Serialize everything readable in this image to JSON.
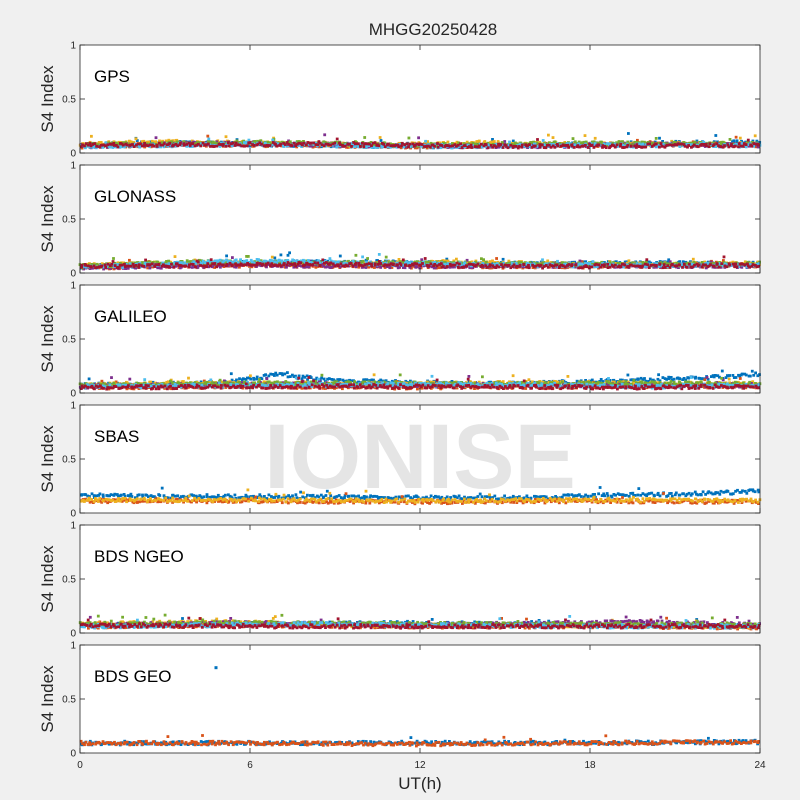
{
  "figure": {
    "title": "MHGG20250428",
    "xlabel": "UT(h)",
    "watermark": "IONISE",
    "background": "#f0f0f0",
    "axes_background": "#ffffff",
    "colors": [
      "#0072bd",
      "#d95319",
      "#edb120",
      "#7e2f8e",
      "#77ac30",
      "#4dbeee",
      "#a2142f"
    ]
  },
  "chart_data": [
    {
      "type": "scatter",
      "panel_label": "GPS",
      "ylabel": "S4 Index",
      "xlim": [
        0,
        24
      ],
      "ylim": [
        0,
        1
      ],
      "xticks": [
        0,
        6,
        12,
        18,
        24
      ],
      "yticks": [
        0,
        0.5,
        1
      ],
      "show_xtick_labels": false,
      "series": [
        {
          "color": "#0072bd",
          "baseline": [
            [
              0,
              0.07
            ],
            [
              3,
              0.09
            ],
            [
              6,
              0.08
            ],
            [
              9,
              0.07
            ],
            [
              12,
              0.06
            ],
            [
              15,
              0.07
            ],
            [
              18,
              0.08
            ],
            [
              21,
              0.09
            ],
            [
              24,
              0.1
            ]
          ]
        },
        {
          "color": "#d95319",
          "baseline": [
            [
              0,
              0.06
            ],
            [
              4,
              0.08
            ],
            [
              8,
              0.07
            ],
            [
              12,
              0.06
            ],
            [
              16,
              0.07
            ],
            [
              20,
              0.08
            ],
            [
              24,
              0.07
            ]
          ]
        },
        {
          "color": "#edb120",
          "baseline": [
            [
              0,
              0.08
            ],
            [
              3,
              0.1
            ],
            [
              6,
              0.09
            ],
            [
              10,
              0.07
            ],
            [
              14,
              0.09
            ],
            [
              18,
              0.08
            ],
            [
              24,
              0.08
            ]
          ]
        },
        {
          "color": "#7e2f8e",
          "baseline": [
            [
              0,
              0.06
            ],
            [
              5,
              0.09
            ],
            [
              10,
              0.07
            ],
            [
              15,
              0.06
            ],
            [
              20,
              0.08
            ],
            [
              24,
              0.07
            ]
          ]
        },
        {
          "color": "#77ac30",
          "baseline": [
            [
              0,
              0.07
            ],
            [
              6,
              0.1
            ],
            [
              12,
              0.07
            ],
            [
              18,
              0.09
            ],
            [
              24,
              0.08
            ]
          ]
        },
        {
          "color": "#4dbeee",
          "baseline": [
            [
              0,
              0.06
            ],
            [
              6,
              0.08
            ],
            [
              12,
              0.06
            ],
            [
              18,
              0.07
            ],
            [
              24,
              0.07
            ]
          ]
        },
        {
          "color": "#a2142f",
          "baseline": [
            [
              0,
              0.07
            ],
            [
              8,
              0.08
            ],
            [
              16,
              0.06
            ],
            [
              24,
              0.07
            ]
          ]
        }
      ],
      "outliers": []
    },
    {
      "type": "scatter",
      "panel_label": "GLONASS",
      "ylabel": "S4 Index",
      "xlim": [
        0,
        24
      ],
      "ylim": [
        0,
        1
      ],
      "xticks": [
        0,
        6,
        12,
        18,
        24
      ],
      "yticks": [
        0,
        0.5,
        1
      ],
      "show_xtick_labels": false,
      "series": [
        {
          "color": "#0072bd",
          "baseline": [
            [
              0,
              0.06
            ],
            [
              6,
              0.09
            ],
            [
              10,
              0.1
            ],
            [
              14,
              0.08
            ],
            [
              20,
              0.09
            ],
            [
              24,
              0.08
            ]
          ]
        },
        {
          "color": "#d95319",
          "baseline": [
            [
              0,
              0.05
            ],
            [
              6,
              0.07
            ],
            [
              12,
              0.06
            ],
            [
              18,
              0.06
            ],
            [
              24,
              0.07
            ]
          ]
        },
        {
          "color": "#edb120",
          "baseline": [
            [
              0,
              0.07
            ],
            [
              4,
              0.09
            ],
            [
              8,
              0.08
            ],
            [
              14,
              0.1
            ],
            [
              18,
              0.07
            ],
            [
              24,
              0.09
            ]
          ]
        },
        {
          "color": "#7e2f8e",
          "baseline": [
            [
              0,
              0.05
            ],
            [
              6,
              0.07
            ],
            [
              12,
              0.06
            ],
            [
              18,
              0.07
            ],
            [
              24,
              0.06
            ]
          ]
        },
        {
          "color": "#77ac30",
          "baseline": [
            [
              0,
              0.06
            ],
            [
              4,
              0.1
            ],
            [
              10,
              0.09
            ],
            [
              16,
              0.08
            ],
            [
              24,
              0.08
            ]
          ]
        },
        {
          "color": "#4dbeee",
          "baseline": [
            [
              0,
              0.05
            ],
            [
              6,
              0.11
            ],
            [
              10,
              0.09
            ],
            [
              16,
              0.07
            ],
            [
              24,
              0.07
            ]
          ]
        },
        {
          "color": "#a2142f",
          "baseline": [
            [
              0,
              0.06
            ],
            [
              8,
              0.08
            ],
            [
              16,
              0.06
            ],
            [
              24,
              0.07
            ]
          ]
        }
      ],
      "outliers": []
    },
    {
      "type": "scatter",
      "panel_label": "GALILEO",
      "ylabel": "S4 Index",
      "xlim": [
        0,
        24
      ],
      "ylim": [
        0,
        1
      ],
      "xticks": [
        0,
        6,
        12,
        18,
        24
      ],
      "yticks": [
        0,
        0.5,
        1
      ],
      "show_xtick_labels": false,
      "series": [
        {
          "color": "#0072bd",
          "baseline": [
            [
              0,
              0.07
            ],
            [
              5,
              0.09
            ],
            [
              7,
              0.17
            ],
            [
              9,
              0.11
            ],
            [
              15,
              0.08
            ],
            [
              20,
              0.12
            ],
            [
              23,
              0.15
            ],
            [
              24,
              0.17
            ]
          ]
        },
        {
          "color": "#d95319",
          "baseline": [
            [
              0,
              0.05
            ],
            [
              6,
              0.06
            ],
            [
              12,
              0.05
            ],
            [
              18,
              0.06
            ],
            [
              24,
              0.06
            ]
          ]
        },
        {
          "color": "#edb120",
          "baseline": [
            [
              0,
              0.07
            ],
            [
              4,
              0.09
            ],
            [
              10,
              0.08
            ],
            [
              16,
              0.09
            ],
            [
              24,
              0.08
            ]
          ]
        },
        {
          "color": "#7e2f8e",
          "baseline": [
            [
              0,
              0.06
            ],
            [
              6,
              0.08
            ],
            [
              12,
              0.07
            ],
            [
              18,
              0.07
            ],
            [
              24,
              0.07
            ]
          ]
        },
        {
          "color": "#77ac30",
          "baseline": [
            [
              0,
              0.07
            ],
            [
              8,
              0.09
            ],
            [
              14,
              0.08
            ],
            [
              20,
              0.09
            ],
            [
              24,
              0.08
            ]
          ]
        },
        {
          "color": "#4dbeee",
          "baseline": [
            [
              0,
              0.06
            ],
            [
              8,
              0.07
            ],
            [
              14,
              0.08
            ],
            [
              20,
              0.06
            ],
            [
              24,
              0.07
            ]
          ]
        },
        {
          "color": "#a2142f",
          "baseline": [
            [
              0,
              0.05
            ],
            [
              10,
              0.06
            ],
            [
              20,
              0.05
            ],
            [
              24,
              0.06
            ]
          ]
        }
      ],
      "outliers": []
    },
    {
      "type": "scatter",
      "panel_label": "SBAS",
      "ylabel": "S4 Index",
      "xlim": [
        0,
        24
      ],
      "ylim": [
        0,
        1
      ],
      "xticks": [
        0,
        6,
        12,
        18,
        24
      ],
      "yticks": [
        0,
        0.5,
        1
      ],
      "show_xtick_labels": false,
      "series": [
        {
          "color": "#0072bd",
          "baseline": [
            [
              0,
              0.16
            ],
            [
              4,
              0.15
            ],
            [
              8,
              0.15
            ],
            [
              12,
              0.14
            ],
            [
              16,
              0.14
            ],
            [
              18,
              0.16
            ],
            [
              21,
              0.17
            ],
            [
              24,
              0.2
            ]
          ]
        },
        {
          "color": "#d95319",
          "baseline": [
            [
              0,
              0.11
            ],
            [
              6,
              0.11
            ],
            [
              12,
              0.1
            ],
            [
              18,
              0.11
            ],
            [
              24,
              0.1
            ]
          ]
        },
        {
          "color": "#edb120",
          "baseline": [
            [
              0,
              0.12
            ],
            [
              6,
              0.12
            ],
            [
              12,
              0.11
            ],
            [
              18,
              0.12
            ],
            [
              24,
              0.11
            ]
          ]
        }
      ],
      "outliers": []
    },
    {
      "type": "scatter",
      "panel_label": "BDS NGEO",
      "ylabel": "S4 Index",
      "xlim": [
        0,
        24
      ],
      "ylim": [
        0,
        1
      ],
      "xticks": [
        0,
        6,
        12,
        18,
        24
      ],
      "yticks": [
        0,
        0.5,
        1
      ],
      "show_xtick_labels": false,
      "series": [
        {
          "color": "#0072bd",
          "baseline": [
            [
              0,
              0.07
            ],
            [
              6,
              0.08
            ],
            [
              12,
              0.09
            ],
            [
              18,
              0.07
            ],
            [
              24,
              0.06
            ]
          ]
        },
        {
          "color": "#d95319",
          "baseline": [
            [
              0,
              0.06
            ],
            [
              6,
              0.07
            ],
            [
              12,
              0.06
            ],
            [
              18,
              0.06
            ],
            [
              24,
              0.05
            ]
          ]
        },
        {
          "color": "#edb120",
          "baseline": [
            [
              0,
              0.08
            ],
            [
              5,
              0.1
            ],
            [
              10,
              0.07
            ],
            [
              16,
              0.07
            ],
            [
              24,
              0.06
            ]
          ]
        },
        {
          "color": "#7e2f8e",
          "baseline": [
            [
              0,
              0.07
            ],
            [
              6,
              0.09
            ],
            [
              12,
              0.07
            ],
            [
              20,
              0.1
            ],
            [
              24,
              0.07
            ]
          ]
        },
        {
          "color": "#77ac30",
          "baseline": [
            [
              0,
              0.08
            ],
            [
              6,
              0.09
            ],
            [
              12,
              0.08
            ],
            [
              18,
              0.08
            ],
            [
              24,
              0.07
            ]
          ]
        },
        {
          "color": "#4dbeee",
          "baseline": [
            [
              0,
              0.06
            ],
            [
              8,
              0.08
            ],
            [
              12,
              0.07
            ],
            [
              18,
              0.06
            ],
            [
              24,
              0.06
            ]
          ]
        },
        {
          "color": "#a2142f",
          "baseline": [
            [
              0,
              0.07
            ],
            [
              8,
              0.06
            ],
            [
              16,
              0.06
            ],
            [
              24,
              0.06
            ]
          ]
        }
      ],
      "outliers": []
    },
    {
      "type": "scatter",
      "panel_label": "BDS GEO",
      "ylabel": "S4 Index",
      "xlim": [
        0,
        24
      ],
      "ylim": [
        0,
        1
      ],
      "xticks": [
        0,
        6,
        12,
        18,
        24
      ],
      "yticks": [
        0,
        0.5,
        1
      ],
      "show_xtick_labels": true,
      "series": [
        {
          "color": "#0072bd",
          "baseline": [
            [
              0,
              0.09
            ],
            [
              6,
              0.09
            ],
            [
              12,
              0.09
            ],
            [
              18,
              0.09
            ],
            [
              24,
              0.1
            ]
          ]
        },
        {
          "color": "#d95319",
          "baseline": [
            [
              0,
              0.09
            ],
            [
              6,
              0.09
            ],
            [
              12,
              0.08
            ],
            [
              18,
              0.09
            ],
            [
              24,
              0.1
            ]
          ]
        }
      ],
      "outliers": [
        {
          "x": 4.8,
          "y": 0.79,
          "color": "#0072bd"
        }
      ]
    }
  ]
}
